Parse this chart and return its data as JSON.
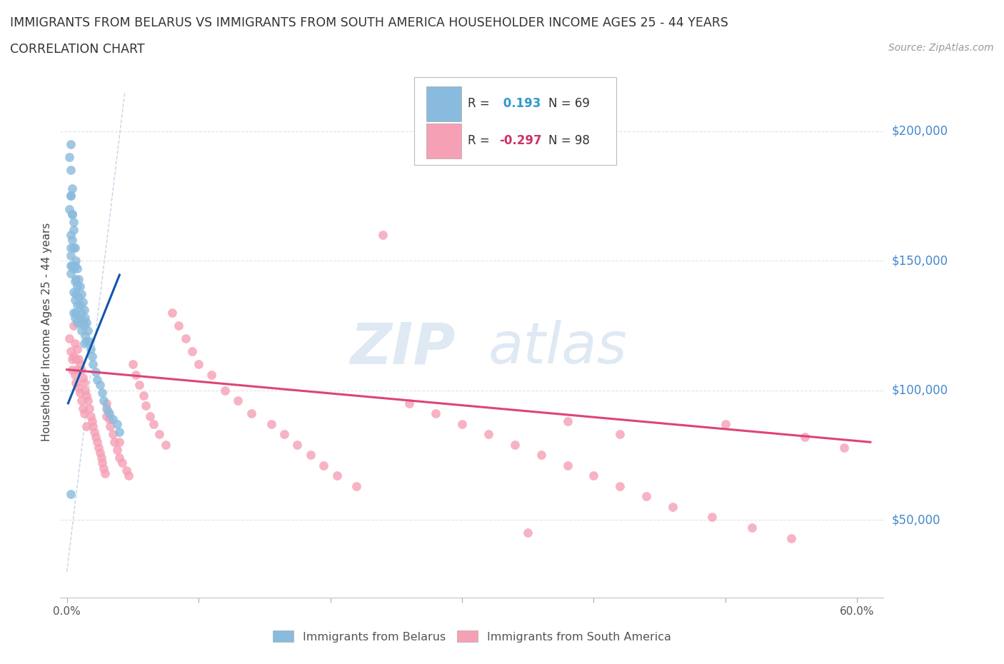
{
  "title_line1": "IMMIGRANTS FROM BELARUS VS IMMIGRANTS FROM SOUTH AMERICA HOUSEHOLDER INCOME AGES 25 - 44 YEARS",
  "title_line2": "CORRELATION CHART",
  "source": "Source: ZipAtlas.com",
  "ylabel": "Householder Income Ages 25 - 44 years",
  "xlim": [
    -0.005,
    0.62
  ],
  "ylim": [
    20000,
    225000
  ],
  "yticks": [
    50000,
    100000,
    150000,
    200000
  ],
  "ytick_labels": [
    "$50,000",
    "$100,000",
    "$150,000",
    "$200,000"
  ],
  "xtick_vals": [
    0.0,
    0.1,
    0.2,
    0.3,
    0.4,
    0.5,
    0.6
  ],
  "xtick_labels": [
    "0.0%",
    "",
    "",
    "",
    "",
    "",
    "60.0%"
  ],
  "r_belarus": 0.193,
  "n_belarus": 69,
  "r_south_america": -0.297,
  "n_south_america": 98,
  "color_belarus": "#88BBDD",
  "color_south_america": "#F5A0B5",
  "color_trendline_belarus": "#1155AA",
  "color_trendline_south_america": "#DD4477",
  "color_diagonal": "#B8C8E0",
  "color_ytick_labels": "#4488CC",
  "color_title": "#333333",
  "color_source": "#999999",
  "color_xlabel": "#555555"
}
